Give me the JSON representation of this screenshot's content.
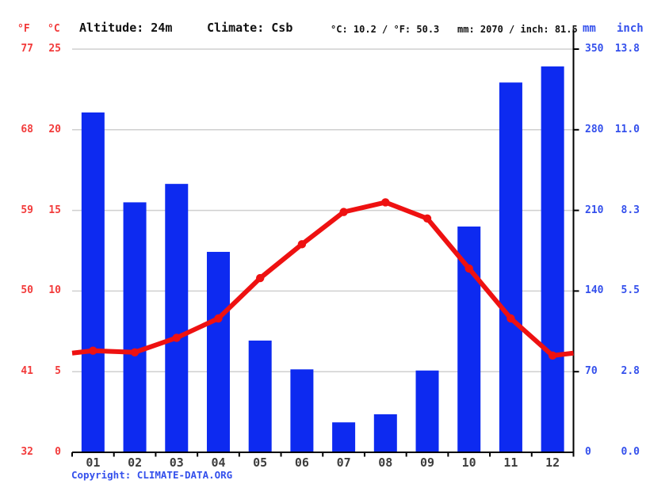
{
  "header": {
    "f_label": "°F",
    "c_label": "°C",
    "altitude": "Altitude: 24m",
    "climate": "Climate: Csb",
    "temp_summary": "°C: 10.2 / °F: 50.3",
    "precip_summary": "mm: 2070 / inch: 81.5",
    "mm_label": "mm",
    "inch_label": "inch"
  },
  "footer": {
    "copyright_label": "Copyright: ",
    "source": "CLIMATE-DATA.ORG"
  },
  "axes": {
    "temp_f_ticks": [
      "77",
      "68",
      "59",
      "50",
      "41",
      "32"
    ],
    "temp_c_ticks": [
      "25",
      "20",
      "15",
      "10",
      "5",
      "0"
    ],
    "mm_ticks": [
      "350",
      "280",
      "210",
      "140",
      "70",
      "0"
    ],
    "inch_ticks": [
      "13.8",
      "11.0",
      "8.3",
      "5.5",
      "2.8",
      "0.0"
    ]
  },
  "colors": {
    "bar_blue": "#0d2af0",
    "line_red": "#ee1111",
    "text_red": "#f23b3b",
    "text_blue": "#3450ec",
    "grid_gray": "#cfcfcf",
    "axis_black": "#000000",
    "month_gray": "#3d3d3d"
  },
  "chart_data": {
    "type": "climograph (bar + line)",
    "title": "",
    "categories": [
      "01",
      "02",
      "03",
      "04",
      "05",
      "06",
      "07",
      "08",
      "09",
      "10",
      "11",
      "12"
    ],
    "series": [
      {
        "name": "Precipitation",
        "type": "bar",
        "unit": "mm",
        "values": [
          295,
          217,
          233,
          174,
          97,
          72,
          26,
          33,
          71,
          196,
          321,
          335
        ]
      },
      {
        "name": "Average temperature",
        "type": "line",
        "unit": "°C",
        "values": [
          6.3,
          6.2,
          7.1,
          8.3,
          10.8,
          12.9,
          14.9,
          15.5,
          14.5,
          11.4,
          8.3,
          6.0
        ]
      }
    ],
    "left_axis": {
      "label_f": "°F",
      "label_c": "°C",
      "range_c": [
        0,
        25
      ],
      "range_f": [
        32,
        77
      ]
    },
    "right_axis": {
      "label_mm": "mm",
      "label_inch": "inch",
      "range_mm": [
        0,
        350
      ],
      "range_inch": [
        0.0,
        13.8
      ]
    },
    "grid": true,
    "legend_position": "none",
    "annotations": {
      "altitude": "24m",
      "climate_class": "Csb",
      "avg_temp_c": 10.2,
      "avg_temp_f": 50.3,
      "total_precip_mm": 2070,
      "total_precip_inch": 81.5
    }
  }
}
